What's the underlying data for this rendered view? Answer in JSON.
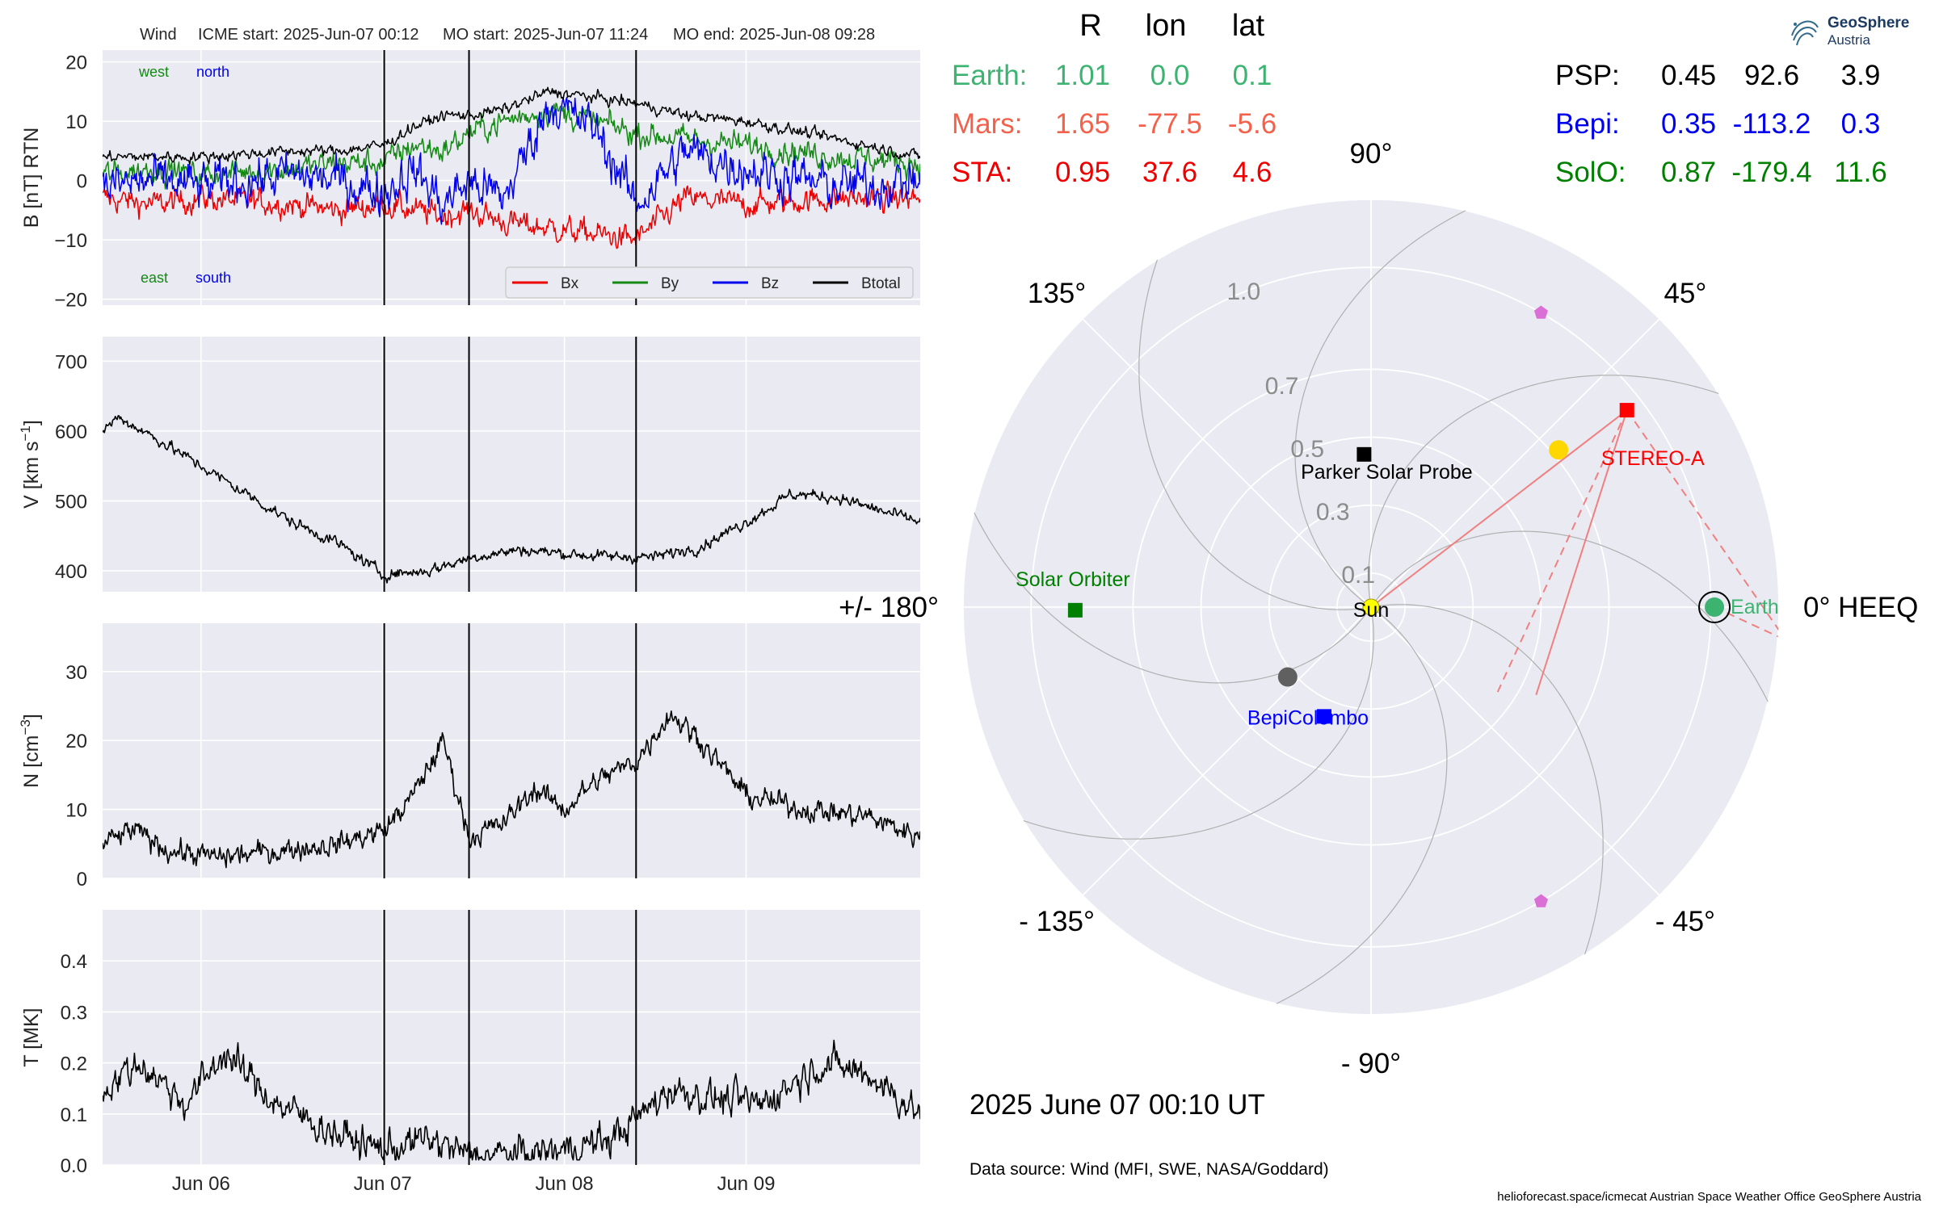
{
  "top_title": {
    "spacecraft": "Wind",
    "icme_start": "ICME start: 2025-Jun-07 00:12",
    "mo_start": "MO start: 2025-Jun-07 11:24",
    "mo_end": "MO end: 2025-Jun-08 09:28"
  },
  "panel_labels": {
    "west": "west",
    "north": "north",
    "east": "east",
    "south": "south",
    "colors": {
      "west_east": "#138a13",
      "north_south": "#0000ee"
    }
  },
  "position_table": {
    "headers": [
      "R",
      "lon",
      "lat"
    ],
    "left_rows": [
      {
        "name": "Earth:",
        "r": "1.01",
        "lon": "0.0",
        "lat": "0.1",
        "color": "#3cb371"
      },
      {
        "name": "Mars:",
        "r": "1.65",
        "lon": "-77.5",
        "lat": "-5.6",
        "color": "#f4604a"
      },
      {
        "name": "STA:",
        "r": "0.95",
        "lon": "37.6",
        "lat": "4.6",
        "color": "#ee0000"
      }
    ],
    "right_rows": [
      {
        "name": "PSP:",
        "r": "0.45",
        "lon": "92.6",
        "lat": "3.9",
        "color": "#000000"
      },
      {
        "name": "Bepi:",
        "r": "0.35",
        "lon": "-113.2",
        "lat": "0.3",
        "color": "#0000ee"
      },
      {
        "name": "SolO:",
        "r": "0.87",
        "lon": "-179.4",
        "lat": "11.6",
        "color": "#008000"
      }
    ]
  },
  "logo": {
    "line1": "GeoSphere",
    "line2": "Austria"
  },
  "timestamp": "2025 June 07  00:10 UT",
  "data_source": "Data source: Wind (MFI, SWE, NASA/Goddard)",
  "footer": "helioforecast.space/icmecat   Austrian Space Weather Office   GeoSphere Austria",
  "chart_data": [
    {
      "type": "line",
      "panel": "magnetic_field",
      "ylabel": "B [nT] RTN",
      "ylim": [
        -21,
        22
      ],
      "yticks": [
        -20,
        -10,
        0,
        10,
        20
      ],
      "xlim": [
        "2025-06-05 11:00",
        "2025-06-09 23:00"
      ],
      "xticks": [
        {
          "t": "2025-06-06",
          "label": "Jun 06"
        },
        {
          "t": "2025-06-07",
          "label": "Jun 07"
        },
        {
          "t": "2025-06-08",
          "label": "Jun 08"
        },
        {
          "t": "2025-06-09",
          "label": "Jun 09"
        }
      ],
      "event_lines": [
        "2025-06-07 00:12",
        "2025-06-07 11:24",
        "2025-06-08 09:28"
      ],
      "legend": "bottom-right",
      "series": [
        {
          "name": "Bx",
          "color": "#ee0000",
          "x": [
            "2025-06-05 11:00",
            "2025-06-05 18:00",
            "2025-06-06 00:00",
            "2025-06-06 12:00",
            "2025-06-06 18:00",
            "2025-06-07 00:12",
            "2025-06-07 04:00",
            "2025-06-07 08:00",
            "2025-06-07 11:24",
            "2025-06-07 16:00",
            "2025-06-07 22:00",
            "2025-06-08 04:00",
            "2025-06-08 09:28",
            "2025-06-08 16:00",
            "2025-06-09 00:00",
            "2025-06-09 12:00",
            "2025-06-09 23:00"
          ],
          "values": [
            -3,
            -4,
            -3,
            -4,
            -5,
            -4,
            -5,
            -6,
            -5,
            -7,
            -8,
            -9,
            -10,
            -3,
            -4,
            -3,
            -3
          ]
        },
        {
          "name": "By",
          "color": "#138a13",
          "x": [
            "2025-06-05 11:00",
            "2025-06-05 18:00",
            "2025-06-06 00:00",
            "2025-06-06 12:00",
            "2025-06-06 18:00",
            "2025-06-07 00:12",
            "2025-06-07 04:00",
            "2025-06-07 08:00",
            "2025-06-07 11:24",
            "2025-06-07 16:00",
            "2025-06-07 22:00",
            "2025-06-08 04:00",
            "2025-06-08 09:28",
            "2025-06-08 16:00",
            "2025-06-09 00:00",
            "2025-06-09 12:00",
            "2025-06-09 23:00"
          ],
          "values": [
            1,
            2,
            1,
            2,
            3,
            3,
            6,
            5,
            8,
            10,
            12,
            10,
            8,
            7,
            6,
            4,
            3
          ]
        },
        {
          "name": "Bz",
          "color": "#0000ee",
          "x": [
            "2025-06-05 11:00",
            "2025-06-05 18:00",
            "2025-06-06 00:00",
            "2025-06-06 12:00",
            "2025-06-06 18:00",
            "2025-06-07 00:12",
            "2025-06-07 04:00",
            "2025-06-07 08:00",
            "2025-06-07 11:24",
            "2025-06-07 16:00",
            "2025-06-07 22:00",
            "2025-06-08 04:00",
            "2025-06-08 09:28",
            "2025-06-08 16:00",
            "2025-06-09 00:00",
            "2025-06-09 12:00",
            "2025-06-09 23:00"
          ],
          "values": [
            -1,
            0,
            -1,
            1,
            0,
            -2,
            2,
            -4,
            0,
            -3,
            13,
            9,
            -4,
            5,
            2,
            -1,
            0
          ]
        },
        {
          "name": "Btotal",
          "color": "#000000",
          "x": [
            "2025-06-05 11:00",
            "2025-06-05 18:00",
            "2025-06-06 00:00",
            "2025-06-06 12:00",
            "2025-06-06 18:00",
            "2025-06-07 00:12",
            "2025-06-07 04:00",
            "2025-06-07 08:00",
            "2025-06-07 11:24",
            "2025-06-07 16:00",
            "2025-06-07 22:00",
            "2025-06-08 04:00",
            "2025-06-08 09:28",
            "2025-06-08 16:00",
            "2025-06-09 00:00",
            "2025-06-09 12:00",
            "2025-06-09 23:00"
          ],
          "values": [
            4,
            4,
            4,
            5,
            5,
            6,
            9,
            11,
            11,
            12,
            15,
            14,
            13,
            11,
            10,
            7,
            4
          ]
        }
      ]
    },
    {
      "type": "line",
      "panel": "speed",
      "ylabel": "V [km s",
      "ylabel_exponent": "−1",
      "ylabel_suffix": "]",
      "ylim": [
        370,
        735
      ],
      "yticks": [
        400,
        500,
        600,
        700
      ],
      "series": [
        {
          "name": "",
          "color": "#000000",
          "x": [
            "2025-06-05 11:00",
            "2025-06-05 13:00",
            "2025-06-05 18:00",
            "2025-06-06 00:00",
            "2025-06-06 06:00",
            "2025-06-06 12:00",
            "2025-06-06 18:00",
            "2025-06-07 00:00",
            "2025-06-07 06:00",
            "2025-06-07 12:00",
            "2025-06-07 18:00",
            "2025-06-08 00:00",
            "2025-06-08 06:00",
            "2025-06-08 12:00",
            "2025-06-08 18:00",
            "2025-06-09 00:00",
            "2025-06-09 06:00",
            "2025-06-09 12:00",
            "2025-06-09 18:00",
            "2025-06-09 23:00"
          ],
          "values": [
            600,
            620,
            590,
            550,
            510,
            470,
            440,
            395,
            400,
            420,
            430,
            425,
            420,
            420,
            435,
            470,
            510,
            505,
            485,
            470
          ]
        }
      ]
    },
    {
      "type": "line",
      "panel": "density",
      "ylabel": "N [cm",
      "ylabel_exponent": "−3",
      "ylabel_suffix": "]",
      "ylim": [
        0,
        37
      ],
      "yticks": [
        0,
        10,
        20,
        30
      ],
      "series": [
        {
          "name": "",
          "color": "#000000",
          "x": [
            "2025-06-05 11:00",
            "2025-06-05 15:00",
            "2025-06-05 20:00",
            "2025-06-06 02:00",
            "2025-06-06 10:00",
            "2025-06-06 18:00",
            "2025-06-07 00:12",
            "2025-06-07 04:00",
            "2025-06-07 08:00",
            "2025-06-07 11:24",
            "2025-06-07 16:00",
            "2025-06-07 20:00",
            "2025-06-08 00:00",
            "2025-06-08 04:00",
            "2025-06-08 09:28",
            "2025-06-08 14:00",
            "2025-06-08 18:00",
            "2025-06-09 00:00",
            "2025-06-09 08:00",
            "2025-06-09 16:00",
            "2025-06-09 23:00"
          ],
          "values": [
            5,
            7,
            4,
            3,
            4,
            5,
            7,
            12,
            20,
            6,
            8,
            13,
            10,
            14,
            17,
            24,
            20,
            12,
            10,
            9,
            6
          ]
        }
      ]
    },
    {
      "type": "line",
      "panel": "temperature",
      "ylabel": "T [MK]",
      "ylim": [
        0,
        0.5
      ],
      "yticks": [
        0.0,
        0.1,
        0.2,
        0.3,
        0.4
      ],
      "series": [
        {
          "name": "",
          "color": "#000000",
          "x": [
            "2025-06-05 11:00",
            "2025-06-05 16:00",
            "2025-06-05 22:00",
            "2025-06-06 03:00",
            "2025-06-06 10:00",
            "2025-06-06 18:00",
            "2025-06-07 00:00",
            "2025-06-07 06:00",
            "2025-06-07 11:24",
            "2025-06-07 18:00",
            "2025-06-08 00:00",
            "2025-06-08 06:00",
            "2025-06-08 09:28",
            "2025-06-08 14:00",
            "2025-06-08 20:00",
            "2025-06-09 02:00",
            "2025-06-09 10:00",
            "2025-06-09 16:00",
            "2025-06-09 23:00"
          ],
          "values": [
            0.15,
            0.2,
            0.12,
            0.22,
            0.12,
            0.06,
            0.03,
            0.05,
            0.02,
            0.02,
            0.03,
            0.05,
            0.09,
            0.15,
            0.13,
            0.12,
            0.2,
            0.18,
            0.1
          ]
        }
      ]
    },
    {
      "type": "scatter",
      "panel": "position_polar",
      "radial_ticks": [
        0.1,
        0.3,
        0.5,
        0.7,
        1.0
      ],
      "r_max": 1.2,
      "angle_labels": [
        {
          "deg": 0,
          "label": "0° HEEQ"
        },
        {
          "deg": 45,
          "label": "45°"
        },
        {
          "deg": 90,
          "label": "90°"
        },
        {
          "deg": 135,
          "label": "135°"
        },
        {
          "deg": 180,
          "label": "+/- 180°"
        },
        {
          "deg": -135,
          "label": "- 135°"
        },
        {
          "deg": -90,
          "label": "- 90°"
        },
        {
          "deg": -45,
          "label": "- 45°"
        }
      ],
      "objects": [
        {
          "name": "Sun",
          "label": "Sun",
          "r": 0.0,
          "lon": 0.0,
          "marker": "circle",
          "color": "#ffff00"
        },
        {
          "name": "Earth",
          "label": "Earth",
          "r": 1.01,
          "lon": 0.0,
          "marker": "circle",
          "color": "#3cb371",
          "ring": true
        },
        {
          "name": "STEREO-A",
          "label": "STEREO-A",
          "r": 0.95,
          "lon": 37.6,
          "marker": "square",
          "color": "#ff0000"
        },
        {
          "name": "Parker Solar Probe",
          "label": "Parker Solar Probe",
          "r": 0.45,
          "lon": 92.6,
          "marker": "square",
          "color": "#000000"
        },
        {
          "name": "BepiColombo",
          "label": "BepiColombo",
          "r": 0.35,
          "lon": -113.2,
          "marker": "square",
          "color": "#0000ff"
        },
        {
          "name": "Solar Orbiter",
          "label": "Solar Orbiter",
          "r": 0.87,
          "lon": -179.4,
          "marker": "square",
          "color": "#008000"
        },
        {
          "name": "Venus",
          "label": "",
          "r": 0.72,
          "lon": 40.0,
          "marker": "circle",
          "color": "#ffd700"
        },
        {
          "name": "Mercury",
          "label": "",
          "r": 0.32,
          "lon": -140.0,
          "marker": "circle",
          "color": "#606060"
        },
        {
          "name": "L4",
          "label": "",
          "r": 1.0,
          "lon": 60.0,
          "marker": "pentagon",
          "color": "#da70d6"
        },
        {
          "name": "L5",
          "label": "",
          "r": 1.0,
          "lon": -60.0,
          "marker": "pentagon",
          "color": "#da70d6"
        }
      ]
    }
  ]
}
